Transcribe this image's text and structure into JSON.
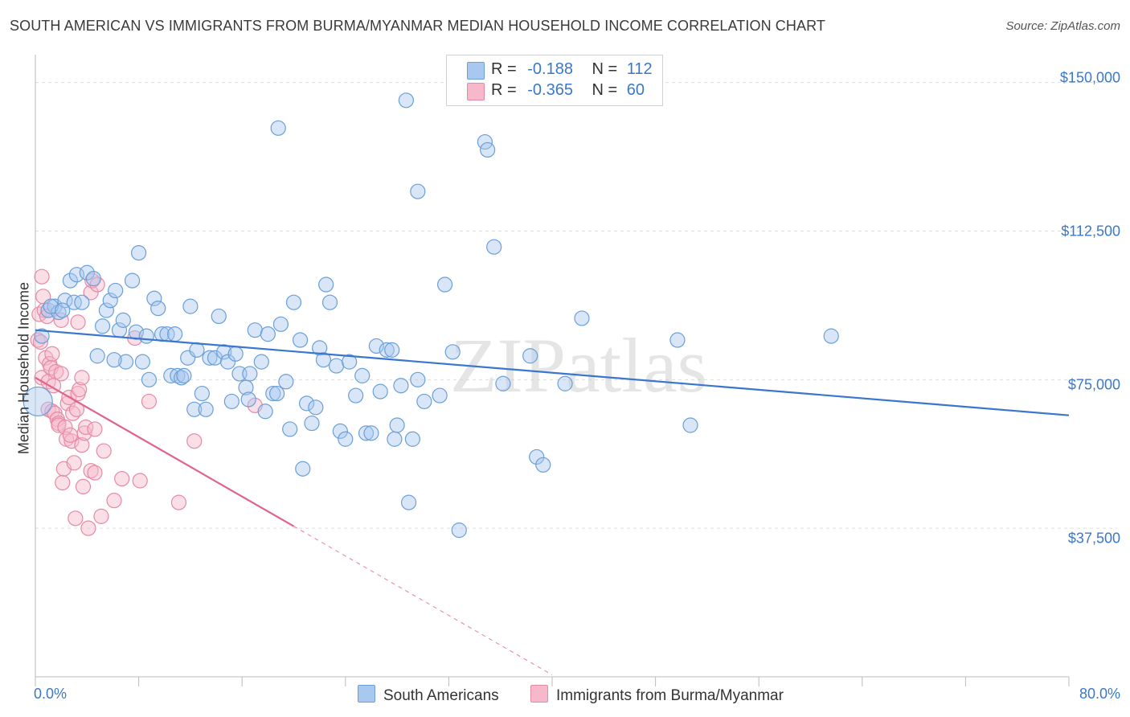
{
  "title": "SOUTH AMERICAN VS IMMIGRANTS FROM BURMA/MYANMAR MEDIAN HOUSEHOLD INCOME CORRELATION CHART",
  "source": "Source: ZipAtlas.com",
  "watermark": "ZIPatlas",
  "colors": {
    "blue_fill": "#a8c8f0",
    "blue_stroke": "#6a9fd8",
    "blue_line": "#3a76d0",
    "pink_fill": "#f6b8ca",
    "pink_stroke": "#e58aa6",
    "pink_line": "#e0638c",
    "grid": "#dddddd",
    "tick_text": "#3b78c8"
  },
  "stats": [
    {
      "r_label": "R =",
      "r_value": "-0.188",
      "n_label": "N =",
      "n_value": "112"
    },
    {
      "r_label": "R =",
      "r_value": "-0.365",
      "n_label": "N =",
      "n_value": "60"
    }
  ],
  "legend": [
    {
      "label": "South Americans"
    },
    {
      "label": "Immigrants from Burma/Myanmar"
    }
  ],
  "chart_data": {
    "type": "scatter",
    "title": "SOUTH AMERICAN VS IMMIGRANTS FROM BURMA/MYANMAR MEDIAN HOUSEHOLD INCOME CORRELATION CHART",
    "xlabel": "",
    "ylabel": "Median Household Income",
    "xlim": [
      0,
      80
    ],
    "ylim": [
      0,
      155000
    ],
    "x_tick_labels": [
      "0.0%",
      "80.0%"
    ],
    "y_ticks": [
      37500,
      75000,
      112500,
      150000
    ],
    "y_tick_labels": [
      "$37,500",
      "$75,000",
      "$112,500",
      "$150,000"
    ],
    "grid": true,
    "series": [
      {
        "name": "South Americans",
        "r": -0.188,
        "n": 112,
        "trend": {
          "x": [
            0,
            80
          ],
          "y": [
            87500,
            66000
          ]
        },
        "points": [
          [
            0.2,
            69500
          ],
          [
            0.5,
            86000
          ],
          [
            1.0,
            92500
          ],
          [
            1.5,
            93500
          ],
          [
            1.8,
            92000
          ],
          [
            2.3,
            95000
          ],
          [
            2.7,
            100000
          ],
          [
            3.0,
            94500
          ],
          [
            3.2,
            101500
          ],
          [
            3.6,
            94500
          ],
          [
            4.0,
            102000
          ],
          [
            4.5,
            100500
          ],
          [
            4.8,
            81000
          ],
          [
            5.2,
            88500
          ],
          [
            5.5,
            92500
          ],
          [
            5.8,
            95000
          ],
          [
            6.2,
            97500
          ],
          [
            6.5,
            87500
          ],
          [
            6.8,
            90000
          ],
          [
            7.0,
            79500
          ],
          [
            7.5,
            100000
          ],
          [
            7.8,
            87000
          ],
          [
            8.0,
            107000
          ],
          [
            8.3,
            79500
          ],
          [
            8.6,
            86000
          ],
          [
            8.8,
            75000
          ],
          [
            9.2,
            95500
          ],
          [
            9.5,
            93000
          ],
          [
            9.8,
            86500
          ],
          [
            10.2,
            86500
          ],
          [
            10.5,
            76000
          ],
          [
            10.8,
            86500
          ],
          [
            11.0,
            76000
          ],
          [
            11.3,
            75500
          ],
          [
            11.5,
            76000
          ],
          [
            11.8,
            80500
          ],
          [
            12.0,
            93500
          ],
          [
            12.3,
            67500
          ],
          [
            12.5,
            82500
          ],
          [
            12.9,
            71500
          ],
          [
            13.2,
            67500
          ],
          [
            13.5,
            80500
          ],
          [
            13.9,
            80500
          ],
          [
            14.2,
            91000
          ],
          [
            14.6,
            82000
          ],
          [
            14.9,
            79500
          ],
          [
            15.2,
            69500
          ],
          [
            15.5,
            81500
          ],
          [
            15.8,
            76500
          ],
          [
            16.3,
            73000
          ],
          [
            16.6,
            76500
          ],
          [
            17.0,
            87500
          ],
          [
            17.5,
            79500
          ],
          [
            17.8,
            67000
          ],
          [
            18.0,
            86500
          ],
          [
            18.4,
            71500
          ],
          [
            18.7,
            71500
          ],
          [
            19.0,
            89000
          ],
          [
            19.4,
            74500
          ],
          [
            19.7,
            62500
          ],
          [
            20.0,
            94500
          ],
          [
            20.5,
            85000
          ],
          [
            20.7,
            52500
          ],
          [
            21.0,
            69000
          ],
          [
            21.4,
            64000
          ],
          [
            21.7,
            68000
          ],
          [
            22.0,
            83000
          ],
          [
            22.3,
            80000
          ],
          [
            22.5,
            99000
          ],
          [
            22.8,
            94500
          ],
          [
            23.3,
            78500
          ],
          [
            23.6,
            62000
          ],
          [
            24.0,
            60000
          ],
          [
            24.3,
            79500
          ],
          [
            24.8,
            71000
          ],
          [
            25.3,
            76000
          ],
          [
            25.6,
            61500
          ],
          [
            26.0,
            61500
          ],
          [
            26.4,
            83500
          ],
          [
            26.7,
            72000
          ],
          [
            27.2,
            82500
          ],
          [
            27.6,
            82500
          ],
          [
            27.8,
            60000
          ],
          [
            28.0,
            63500
          ],
          [
            28.3,
            73500
          ],
          [
            28.9,
            44000
          ],
          [
            29.2,
            60000
          ],
          [
            29.6,
            75000
          ],
          [
            30.1,
            69500
          ],
          [
            31.3,
            71000
          ],
          [
            31.7,
            99000
          ],
          [
            32.3,
            82000
          ],
          [
            32.8,
            37000
          ],
          [
            34.8,
            135000
          ],
          [
            35.0,
            133000
          ],
          [
            35.5,
            108500
          ],
          [
            36.2,
            74000
          ],
          [
            38.3,
            81000
          ],
          [
            38.8,
            55500
          ],
          [
            39.3,
            53500
          ],
          [
            41.0,
            74000
          ],
          [
            42.3,
            90500
          ],
          [
            49.7,
            85000
          ],
          [
            50.7,
            63500
          ],
          [
            61.6,
            86000
          ],
          [
            28.7,
            145500
          ],
          [
            29.6,
            122500
          ],
          [
            18.8,
            138500
          ],
          [
            1.2,
            93500
          ],
          [
            2.1,
            92500
          ],
          [
            6.1,
            80000
          ],
          [
            16.5,
            70000
          ]
        ]
      },
      {
        "name": "Immigrants from Burma/Myanmar",
        "r": -0.365,
        "n": 60,
        "trend": {
          "x": [
            0,
            20
          ],
          "y": [
            75500,
            38000
          ]
        },
        "trend_dashed": {
          "x": [
            20,
            40
          ],
          "y": [
            38000,
            500
          ]
        },
        "points": [
          [
            0.2,
            85000
          ],
          [
            0.3,
            91500
          ],
          [
            0.4,
            84500
          ],
          [
            0.5,
            75500
          ],
          [
            0.5,
            101000
          ],
          [
            0.7,
            92500
          ],
          [
            0.8,
            80500
          ],
          [
            0.9,
            91000
          ],
          [
            1.0,
            74500
          ],
          [
            1.0,
            67500
          ],
          [
            1.1,
            79000
          ],
          [
            1.2,
            78000
          ],
          [
            1.3,
            67000
          ],
          [
            1.3,
            81500
          ],
          [
            1.5,
            66500
          ],
          [
            1.6,
            77000
          ],
          [
            1.7,
            65000
          ],
          [
            1.8,
            64000
          ],
          [
            1.8,
            63500
          ],
          [
            2.0,
            76500
          ],
          [
            2.0,
            90000
          ],
          [
            2.1,
            49000
          ],
          [
            2.2,
            52500
          ],
          [
            2.3,
            63000
          ],
          [
            2.4,
            60000
          ],
          [
            2.5,
            69000
          ],
          [
            2.6,
            70500
          ],
          [
            2.8,
            59500
          ],
          [
            2.9,
            66500
          ],
          [
            3.0,
            54000
          ],
          [
            3.1,
            40000
          ],
          [
            3.2,
            67500
          ],
          [
            3.3,
            89500
          ],
          [
            3.3,
            71500
          ],
          [
            3.4,
            72500
          ],
          [
            3.6,
            75500
          ],
          [
            3.6,
            58500
          ],
          [
            3.7,
            48000
          ],
          [
            3.8,
            61500
          ],
          [
            3.9,
            63000
          ],
          [
            4.1,
            37500
          ],
          [
            4.3,
            52000
          ],
          [
            4.3,
            97000
          ],
          [
            4.4,
            100000
          ],
          [
            4.6,
            62500
          ],
          [
            4.6,
            51500
          ],
          [
            4.8,
            99000
          ],
          [
            5.1,
            40500
          ],
          [
            5.3,
            57000
          ],
          [
            6.1,
            44500
          ],
          [
            6.7,
            50000
          ],
          [
            7.7,
            85500
          ],
          [
            8.1,
            49500
          ],
          [
            8.8,
            69500
          ],
          [
            11.1,
            44000
          ],
          [
            12.3,
            59500
          ],
          [
            17.0,
            68500
          ],
          [
            0.6,
            96000
          ],
          [
            1.4,
            73500
          ],
          [
            2.7,
            61000
          ]
        ]
      }
    ]
  }
}
